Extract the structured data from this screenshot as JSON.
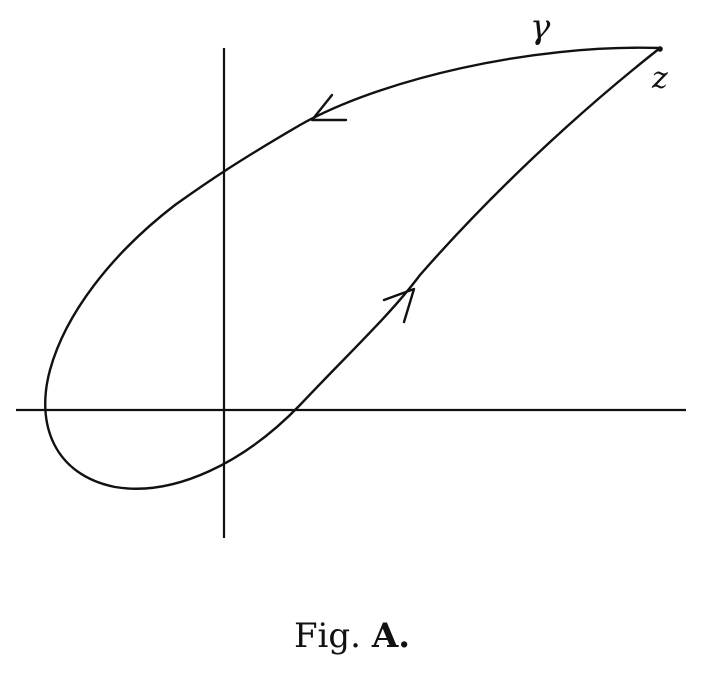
{
  "figure": {
    "curve_label": "γ",
    "point_label": "z",
    "caption_prefix": "Fig.",
    "caption_letter": "A."
  }
}
